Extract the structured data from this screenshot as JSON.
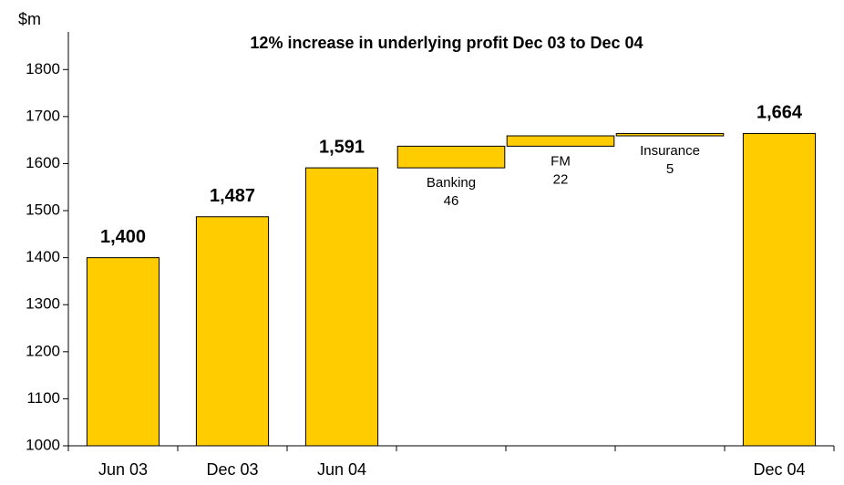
{
  "chart_data": {
    "type": "waterfall",
    "title": "12% increase in underlying profit Dec 03 to Dec 04",
    "y_label": "$m",
    "categories": [
      "Jun 03",
      "Dec 03",
      "Jun 04",
      null,
      null,
      null,
      "Dec 04"
    ],
    "kinds": [
      "total",
      "total",
      "total",
      "step",
      "step",
      "step",
      "total"
    ],
    "step_names": [
      null,
      null,
      null,
      "Banking",
      "FM",
      "Insurance",
      null
    ],
    "values": [
      1400,
      1487,
      1591,
      46,
      22,
      5,
      1664
    ],
    "value_labels": [
      "1,400",
      "1,487",
      "1,591",
      "46",
      "22",
      "5",
      "1,664"
    ],
    "color": "#ffcc00",
    "ylim": [
      1000,
      1880
    ],
    "yticks": [
      1000,
      1100,
      1200,
      1300,
      1400,
      1500,
      1600,
      1700,
      1800
    ],
    "grid": false
  }
}
